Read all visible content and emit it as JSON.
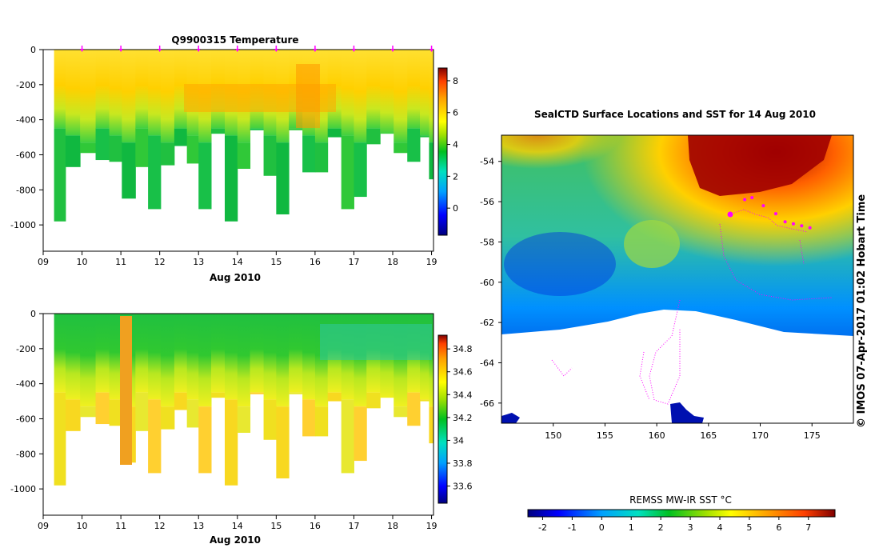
{
  "figure": {
    "title": "Q9900315  Temperature",
    "map_title": "SealCTD Surface Locations and SST for 14 Aug 2010",
    "stamp": "© IMOS 07-Apr-2017 01:02 Hobart Time",
    "colors": {
      "axis": "#000000",
      "marker": "#ff00ff",
      "land": "#ffffff"
    }
  },
  "chart_data": [
    {
      "id": "temperature-section",
      "type": "heatmap",
      "title": "Q9900315  Temperature",
      "xlabel": "Aug 2010",
      "ylabel": "",
      "x_ticks": [
        "09",
        "10",
        "11",
        "12",
        "13",
        "14",
        "15",
        "16",
        "17",
        "18",
        "19"
      ],
      "xlim": [
        9,
        19.05
      ],
      "y_ticks": [
        0,
        -200,
        -400,
        -600,
        -800,
        -1000
      ],
      "ylim": [
        -1150,
        0
      ],
      "colorbar": {
        "ticks": [
          0,
          2,
          4,
          6,
          8
        ],
        "range": [
          -1.7,
          8.8
        ]
      },
      "profile_markers": [
        10,
        11,
        12,
        13,
        14,
        15,
        16,
        17,
        18,
        19
      ]
    },
    {
      "id": "salinity-section",
      "type": "heatmap",
      "title": "",
      "xlabel": "Aug 2010",
      "ylabel": "",
      "x_ticks": [
        "09",
        "10",
        "11",
        "12",
        "13",
        "14",
        "15",
        "16",
        "17",
        "18",
        "19"
      ],
      "xlim": [
        9,
        19.05
      ],
      "y_ticks": [
        0,
        -200,
        -400,
        -600,
        -800,
        -1000
      ],
      "ylim": [
        -1150,
        0
      ],
      "colorbar": {
        "ticks": [
          33.6,
          33.8,
          34,
          34.2,
          34.4,
          34.6,
          34.8
        ],
        "range": [
          33.45,
          34.92
        ]
      }
    },
    {
      "id": "sst-map",
      "type": "heatmap",
      "title": "SealCTD Surface Locations and SST for 14 Aug 2010",
      "xlabel": "",
      "ylabel": "",
      "x_ticks": [
        150,
        155,
        160,
        165,
        170,
        175
      ],
      "xlim": [
        145,
        179
      ],
      "y_ticks": [
        -54,
        -56,
        -58,
        -60,
        -62,
        -64,
        -66
      ],
      "ylim": [
        -67,
        -52.7
      ],
      "colorbar": {
        "label": "REMSS MW-IR SST °C",
        "ticks": [
          -2,
          -1,
          0,
          1,
          2,
          3,
          4,
          5,
          6,
          7
        ],
        "range": [
          -2.5,
          7.9
        ]
      }
    }
  ],
  "profiles": {
    "x": [
      9.4,
      9.75,
      10.15,
      10.55,
      10.85,
      11.2,
      11.55,
      11.85,
      12.2,
      12.55,
      12.85,
      13.15,
      13.5,
      13.85,
      14.15,
      14.5,
      14.85,
      15.15,
      15.5,
      15.85,
      16.15,
      16.5,
      16.85,
      17.15,
      17.5,
      17.85,
      18.2,
      18.55,
      18.85,
      19.02
    ],
    "bottom": [
      980,
      670,
      590,
      630,
      640,
      850,
      670,
      910,
      660,
      550,
      650,
      910,
      480,
      980,
      680,
      460,
      720,
      940,
      460,
      700,
      700,
      500,
      910,
      840,
      540,
      480,
      590,
      640,
      500,
      740
    ]
  }
}
